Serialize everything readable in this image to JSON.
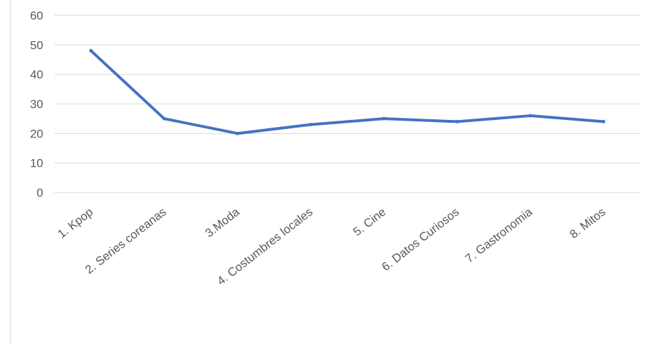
{
  "chart_data": {
    "type": "line",
    "title": "",
    "xlabel": "",
    "ylabel": "",
    "categories": [
      "1. Kpop",
      "2. Series coreanas",
      "3.Moda",
      "4. Costumbres locales",
      "5. Cine",
      "6. Datos Curiosos",
      "7. Gastronomia",
      "8. Mitos"
    ],
    "series": [
      {
        "values": [
          48,
          25,
          20,
          23,
          25,
          24,
          26,
          24
        ]
      }
    ],
    "ylim": [
      0,
      60
    ],
    "yticks": [
      "0",
      "10",
      "20",
      "30",
      "40",
      "50",
      "60"
    ],
    "grid": "horizontal",
    "legend": "none",
    "colors": {
      "line": "#4472c4",
      "grid": "#d9d9d9",
      "axis": "#d9d9d9",
      "text": "#595959"
    }
  }
}
